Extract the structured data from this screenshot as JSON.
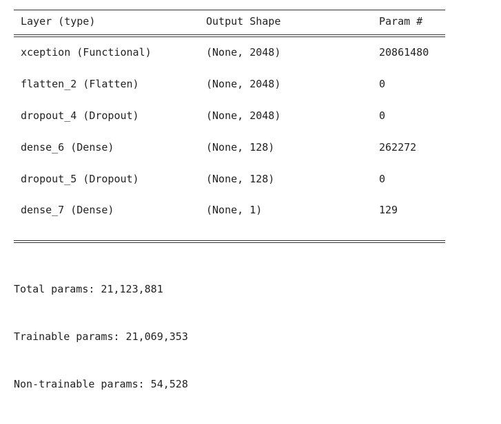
{
  "summary": {
    "headers": {
      "layer": "Layer (type)",
      "shape": "Output Shape",
      "params": "Param #"
    },
    "layers": [
      {
        "layer": "xception (Functional)",
        "shape": "(None, 2048)",
        "params": "20861480"
      },
      {
        "layer": "flatten_2 (Flatten)",
        "shape": "(None, 2048)",
        "params": "0"
      },
      {
        "layer": "dropout_4 (Dropout)",
        "shape": "(None, 2048)",
        "params": "0"
      },
      {
        "layer": "dense_6 (Dense)",
        "shape": "(None, 128)",
        "params": "262272"
      },
      {
        "layer": "dropout_5 (Dropout)",
        "shape": "(None, 128)",
        "params": "0"
      },
      {
        "layer": "dense_7 (Dense)",
        "shape": "(None, 1)",
        "params": "129"
      }
    ],
    "totals": {
      "total": "Total params: 21,123,881",
      "trainable": "Trainable params: 21,069,353",
      "non_trainable": "Non-trainable params: 54,528"
    }
  }
}
